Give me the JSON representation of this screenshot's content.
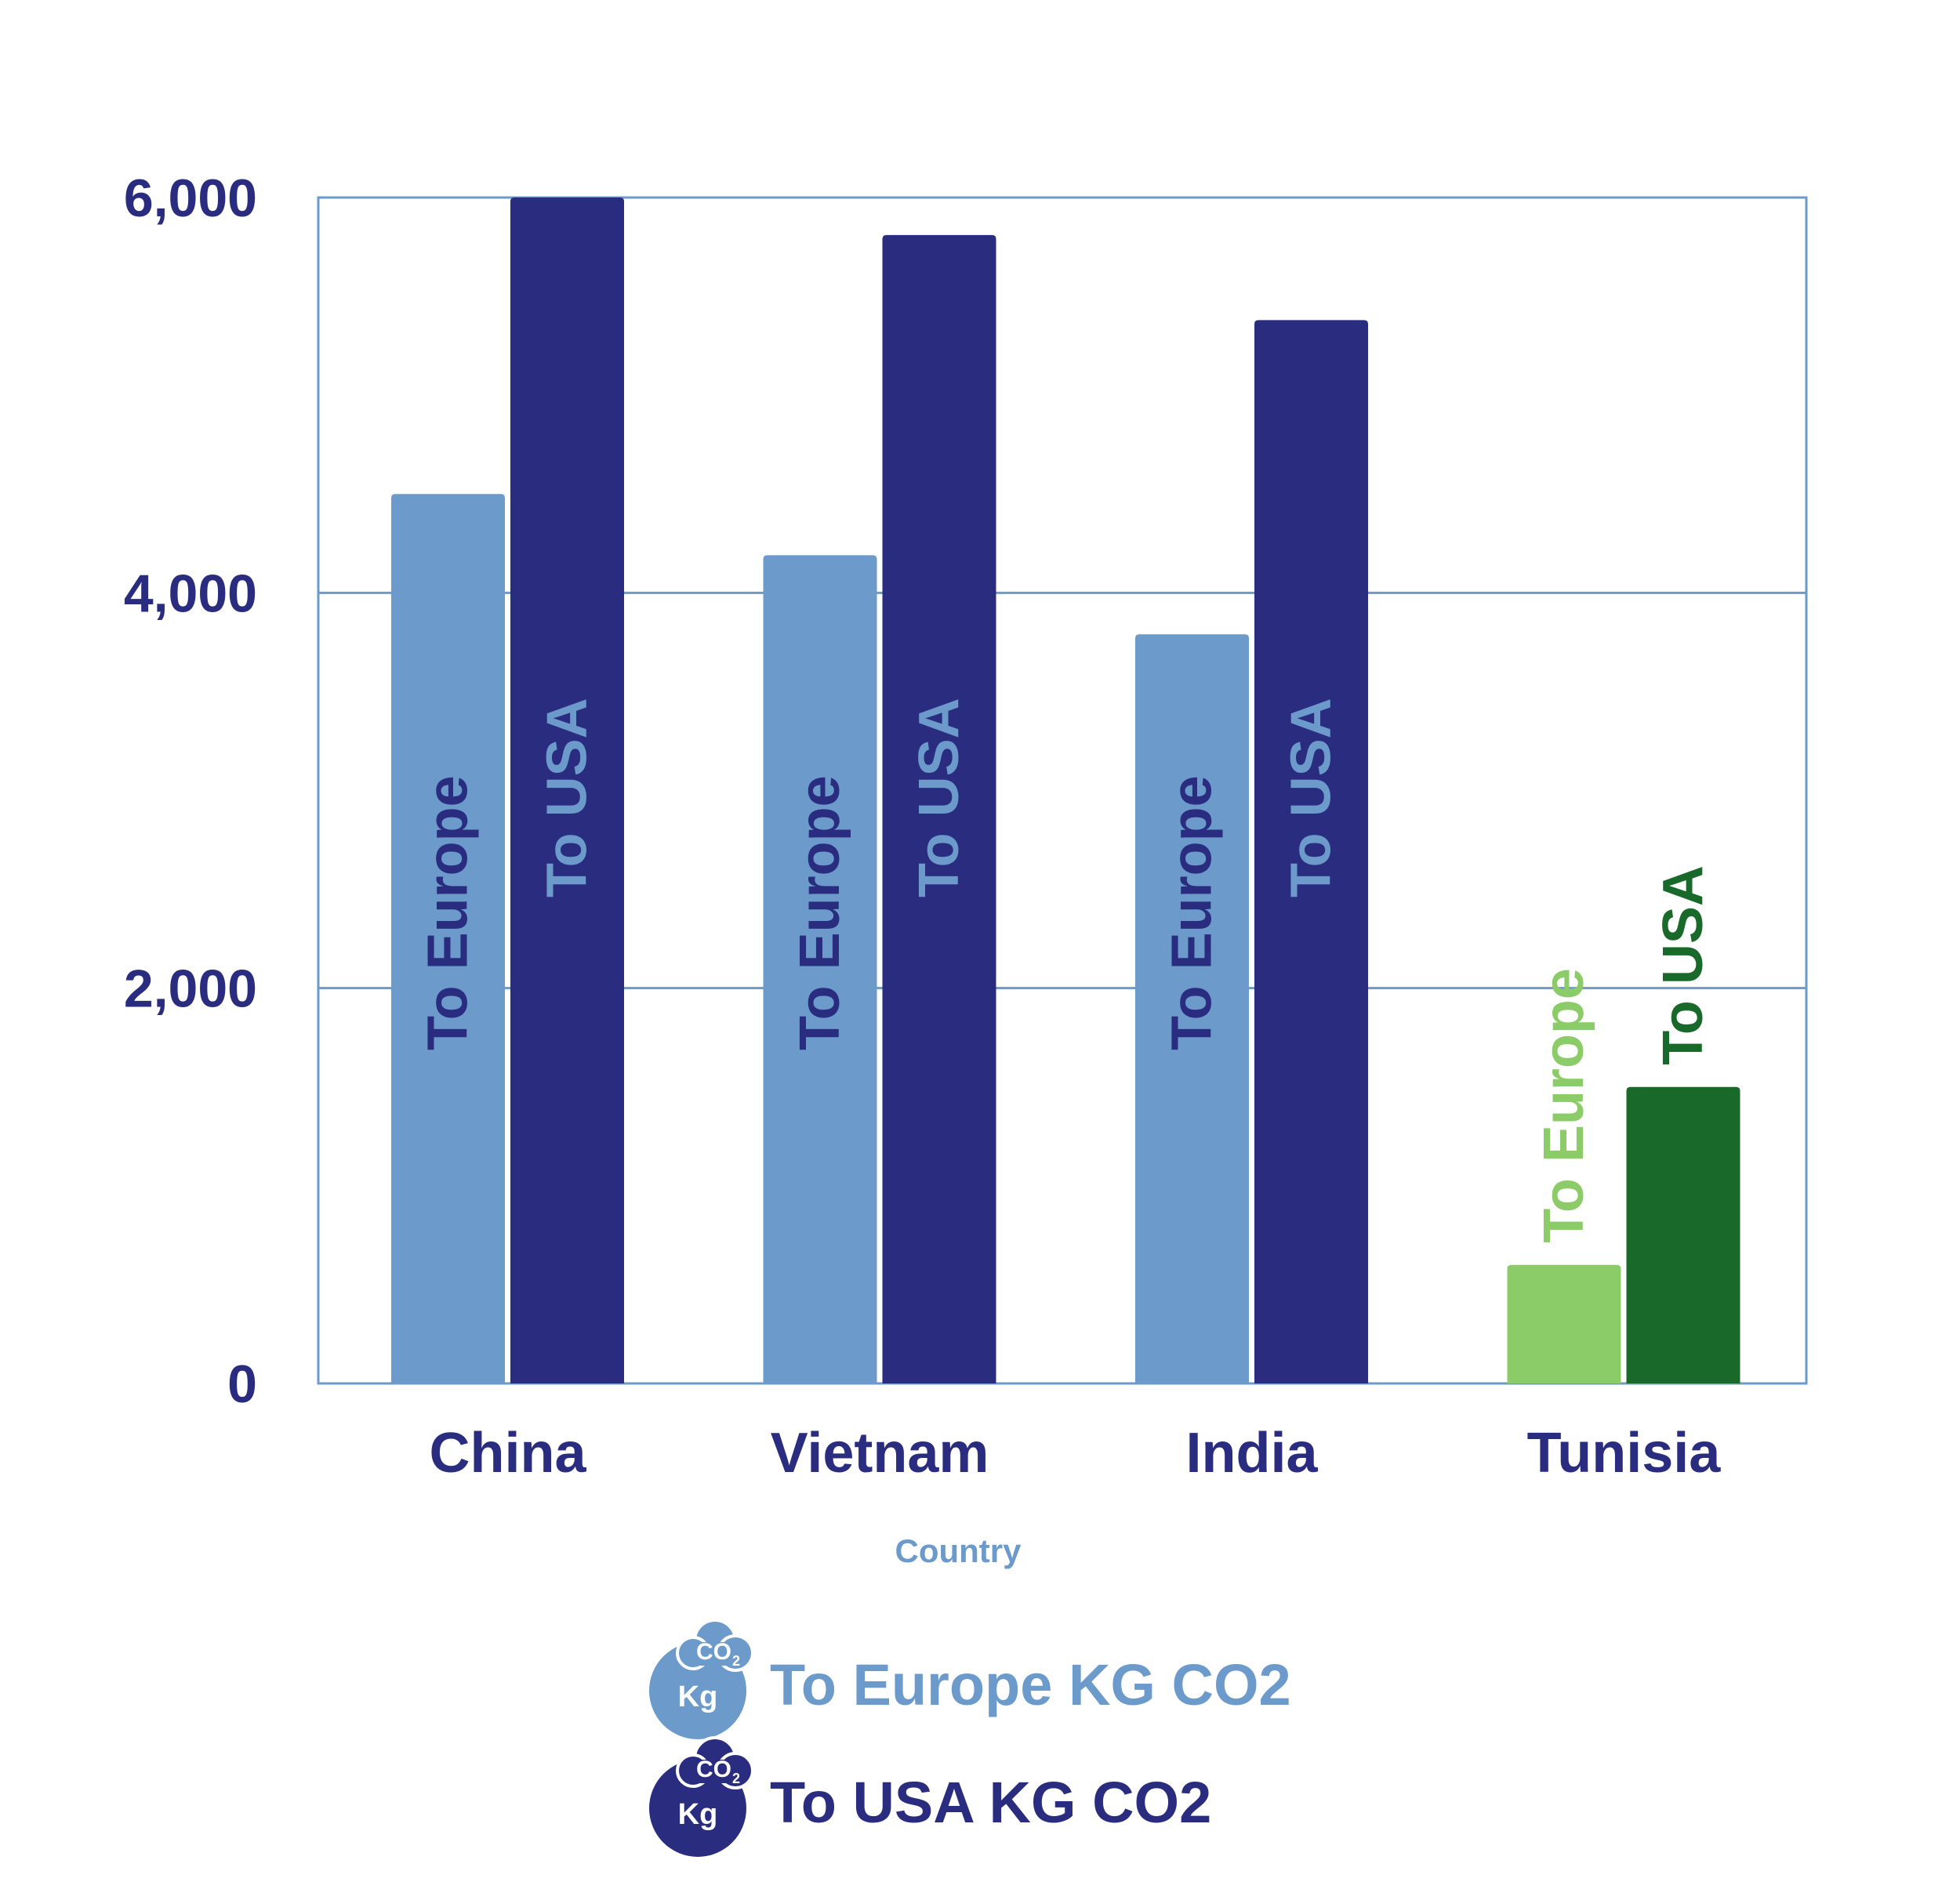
{
  "chart_data": {
    "type": "bar",
    "categories": [
      "China",
      "Vietnam",
      "India",
      "Tunisia"
    ],
    "series": [
      {
        "name": "To Europe KG CO2",
        "bar_label": "To Europe",
        "values": [
          4500,
          4190,
          3790,
          600
        ],
        "colors": [
          "#6b9acb",
          "#6b9acb",
          "#6b9acb",
          "#8bcb68"
        ],
        "label_colors": [
          "#2a2d7f",
          "#2a2d7f",
          "#2a2d7f",
          "#8bcb68"
        ]
      },
      {
        "name": "To USA KG CO2",
        "bar_label": "To USA",
        "values": [
          6000,
          5810,
          5380,
          1500
        ],
        "colors": [
          "#2a2d7f",
          "#2a2d7f",
          "#2a2d7f",
          "#196a2a"
        ],
        "label_colors": [
          "#6b9acb",
          "#6b9acb",
          "#6b9acb",
          "#196a2a"
        ]
      }
    ],
    "y_ticks": [
      "0",
      "2,000",
      "4,000",
      "6,000"
    ],
    "y_tick_values": [
      0,
      2000,
      4000,
      6000
    ],
    "ylim": [
      0,
      6000
    ],
    "xlabel": "Country",
    "ylabel": "",
    "title": "",
    "grid": true,
    "legend_position": "bottom-center"
  },
  "legend": {
    "items": [
      {
        "label": "To Europe KG CO2",
        "icon": "co2-cloud-icon",
        "color": "#6b9acb",
        "icon_text_kg": "Kg",
        "icon_text_co": "CO",
        "icon_text_sub": "2"
      },
      {
        "label": "To USA KG CO2",
        "icon": "co2-cloud-icon",
        "color": "#2a2d7f",
        "icon_text_kg": "Kg",
        "icon_text_co": "CO",
        "icon_text_sub": "2"
      }
    ]
  },
  "colors": {
    "axis_text": "#2a2d7f",
    "xlabel": "#6b9acb",
    "grid": "#6b9acb"
  }
}
